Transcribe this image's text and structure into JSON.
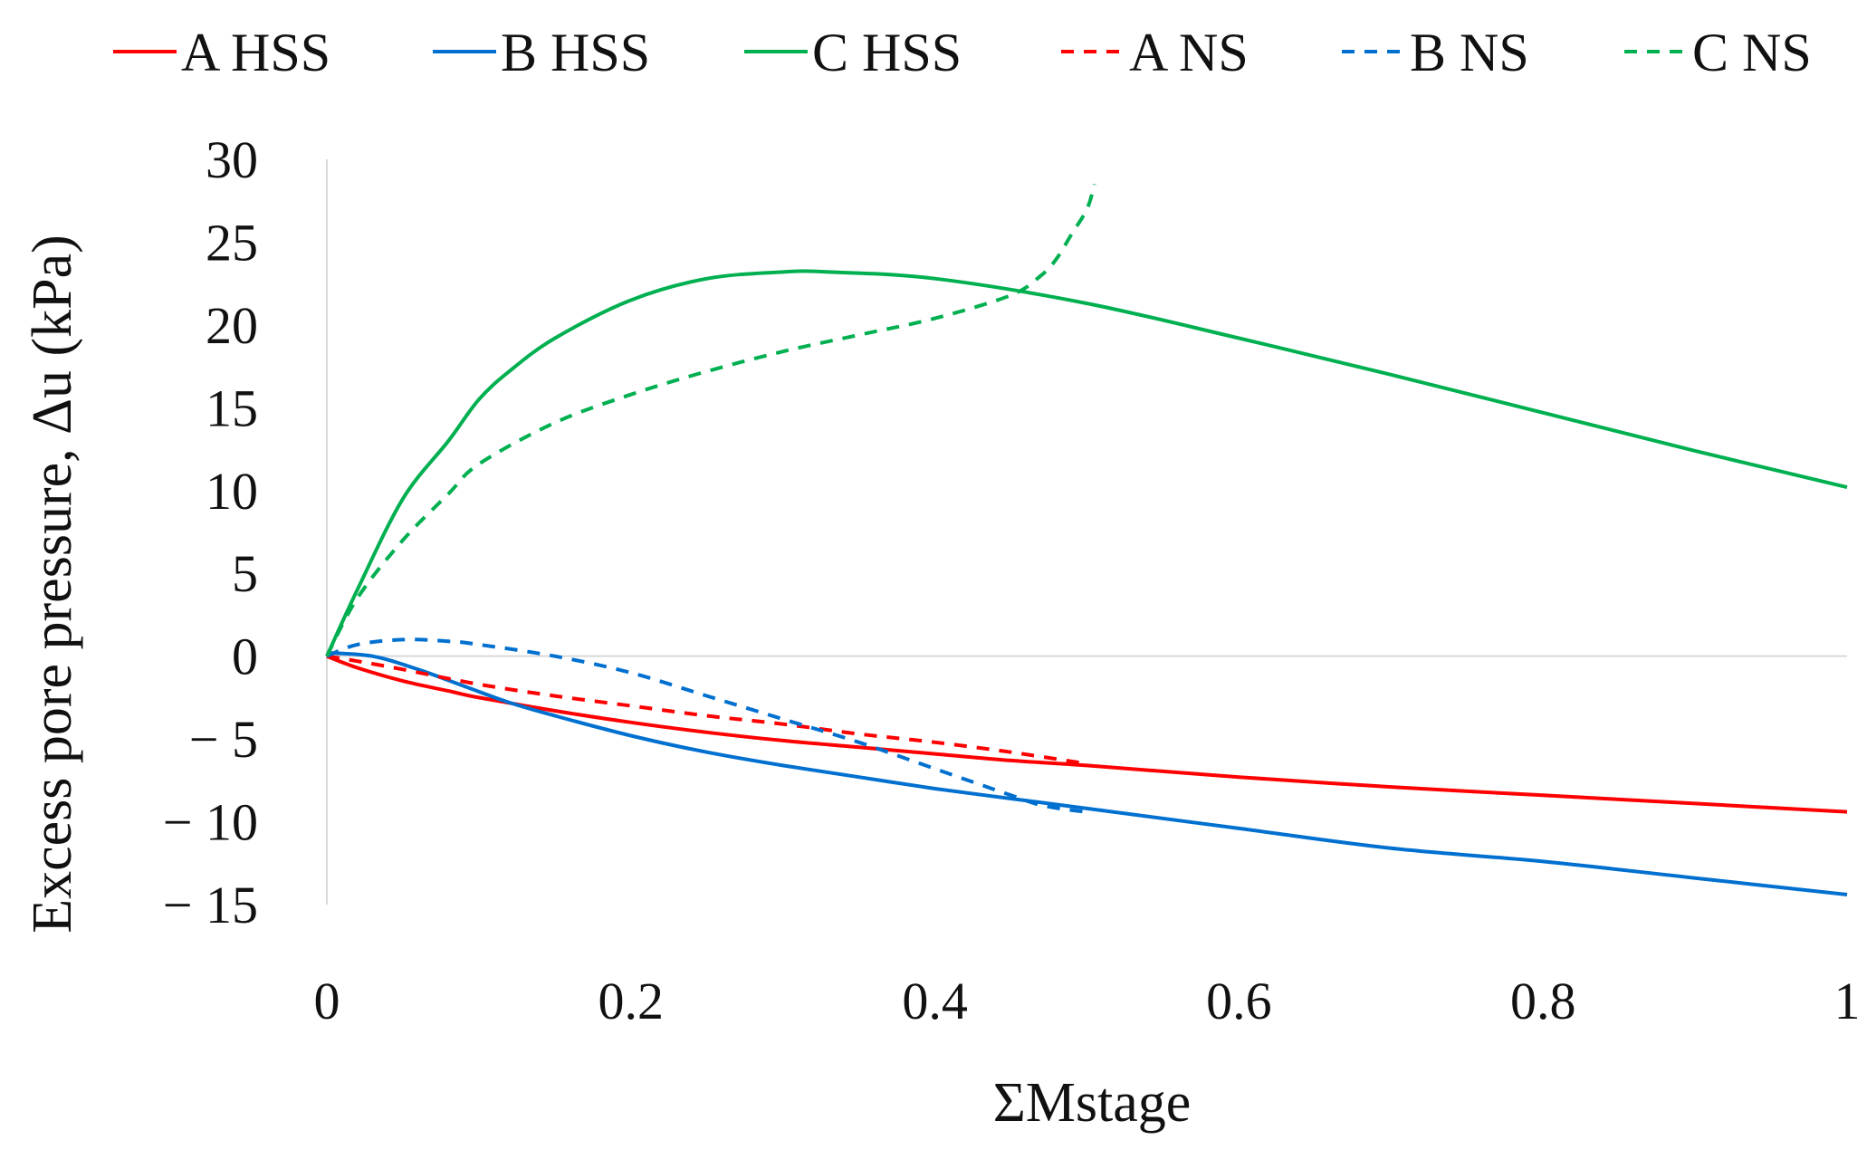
{
  "chart_data": {
    "type": "line",
    "title": "",
    "xlabel": "ΣMstage",
    "ylabel": "Excess pore pressure, Δu (kPa)",
    "xlim": [
      0,
      1
    ],
    "ylim": [
      -15,
      30
    ],
    "x_ticks": [
      0,
      0.2,
      0.4,
      0.6,
      0.8,
      1
    ],
    "x_tick_labels": [
      "0",
      "0.2",
      "0.4",
      "0.6",
      "0.8",
      "1"
    ],
    "y_ticks": [
      30,
      25,
      20,
      15,
      10,
      5,
      0,
      -5,
      -10,
      -15
    ],
    "y_tick_labels": [
      "30",
      "25",
      "20",
      "15",
      "10",
      "5",
      "0",
      "− 5",
      "− 10",
      "− 15"
    ],
    "grid": false,
    "legend_position": "top",
    "series": [
      {
        "name": "A HSS",
        "color": "#ff0000",
        "dash": "solid",
        "x": [
          0,
          0.02,
          0.05,
          0.08,
          0.1,
          0.15,
          0.2,
          0.25,
          0.3,
          0.35,
          0.4,
          0.45,
          0.5,
          0.6,
          0.7,
          0.8,
          0.9,
          1.0
        ],
        "y": [
          0,
          -0.7,
          -1.5,
          -2.1,
          -2.5,
          -3.3,
          -4.0,
          -4.6,
          -5.1,
          -5.5,
          -5.9,
          -6.3,
          -6.6,
          -7.3,
          -7.9,
          -8.4,
          -8.9,
          -9.4
        ]
      },
      {
        "name": "B HSS",
        "color": "#0070d0",
        "dash": "solid",
        "x": [
          0,
          0.03,
          0.06,
          0.09,
          0.12,
          0.15,
          0.2,
          0.25,
          0.3,
          0.35,
          0.4,
          0.45,
          0.5,
          0.6,
          0.7,
          0.8,
          0.9,
          1.0
        ],
        "y": [
          0.2,
          0,
          -0.8,
          -1.8,
          -2.8,
          -3.6,
          -4.8,
          -5.8,
          -6.6,
          -7.3,
          -8.0,
          -8.6,
          -9.2,
          -10.4,
          -11.6,
          -12.4,
          -13.4,
          -14.4
        ]
      },
      {
        "name": "C HSS",
        "color": "#00b050",
        "dash": "solid",
        "x": [
          0,
          0.02,
          0.05,
          0.08,
          0.1,
          0.12,
          0.15,
          0.2,
          0.25,
          0.3,
          0.33,
          0.4,
          0.5,
          0.6,
          0.7,
          0.8,
          0.9,
          1.0
        ],
        "y": [
          0,
          4,
          9.5,
          13,
          15.5,
          17.2,
          19.2,
          21.5,
          22.8,
          23.2,
          23.2,
          22.8,
          21.3,
          19.2,
          17.0,
          14.7,
          12.4,
          10.2
        ]
      },
      {
        "name": "A NS",
        "color": "#ff0000",
        "dash": "dashed",
        "x": [
          0,
          0.02,
          0.05,
          0.1,
          0.15,
          0.2,
          0.25,
          0.3,
          0.35,
          0.4,
          0.45,
          0.5
        ],
        "y": [
          0,
          -0.3,
          -0.8,
          -1.7,
          -2.4,
          -3.0,
          -3.6,
          -4.1,
          -4.7,
          -5.2,
          -5.8,
          -6.5
        ]
      },
      {
        "name": "B NS",
        "color": "#0070d0",
        "dash": "dashed",
        "x": [
          0,
          0.02,
          0.05,
          0.08,
          0.1,
          0.15,
          0.2,
          0.25,
          0.3,
          0.35,
          0.4,
          0.45,
          0.47,
          0.49,
          0.5
        ],
        "y": [
          0,
          0.7,
          1.0,
          0.9,
          0.7,
          0,
          -1.0,
          -2.4,
          -3.8,
          -5.2,
          -6.8,
          -8.4,
          -9.0,
          -9.3,
          -9.4
        ]
      },
      {
        "name": "C NS",
        "color": "#00b050",
        "dash": "dashed",
        "x": [
          0,
          0.02,
          0.05,
          0.08,
          0.1,
          0.15,
          0.2,
          0.25,
          0.3,
          0.35,
          0.4,
          0.45,
          0.47,
          0.48,
          0.49,
          0.5,
          0.505
        ],
        "y": [
          0,
          3.5,
          7.0,
          9.8,
          11.6,
          14.1,
          15.8,
          17.2,
          18.4,
          19.4,
          20.4,
          21.8,
          23.0,
          24.0,
          25.5,
          27.0,
          28.5
        ]
      }
    ]
  }
}
